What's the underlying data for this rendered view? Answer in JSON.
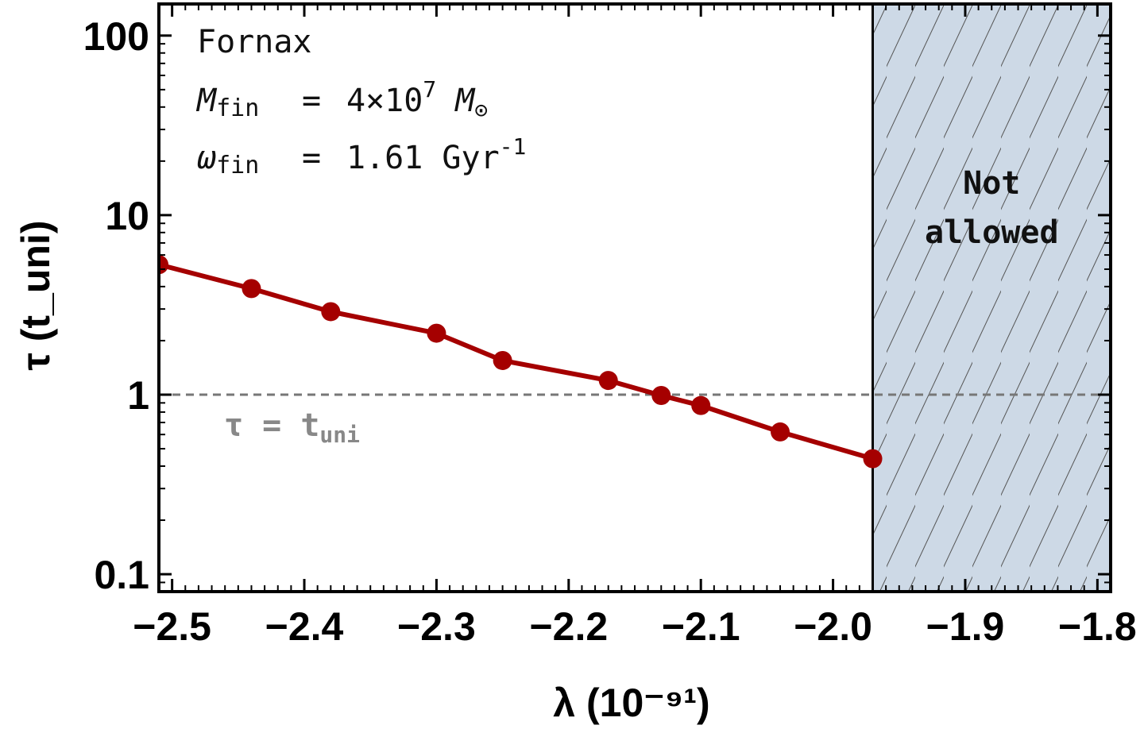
{
  "chart_data": {
    "type": "line",
    "xlabel": "λ (10⁻⁹¹)",
    "ylabel": "τ (t_uni)",
    "xlim": [
      -2.51,
      -1.79
    ],
    "ylim": [
      0.08,
      150
    ],
    "y_scale": "log",
    "x_ticks": [
      -2.5,
      -2.4,
      -2.3,
      -2.2,
      -2.1,
      -2.0,
      -1.9,
      -1.8
    ],
    "x_tick_labels": [
      "−2.5",
      "−2.4",
      "−2.3",
      "−2.2",
      "−2.1",
      "−2.0",
      "−1.9",
      "−1.8"
    ],
    "y_ticks": [
      0.1,
      1,
      10,
      100
    ],
    "y_tick_labels": [
      "0.1",
      "1",
      "10",
      "100"
    ],
    "grid": false,
    "series": [
      {
        "color": "#a50000",
        "x": [
          -2.51,
          -2.44,
          -2.38,
          -2.3,
          -2.25,
          -2.17,
          -2.13,
          -2.1,
          -2.04,
          -1.97
        ],
        "y": [
          5.3,
          3.9,
          2.9,
          2.2,
          1.55,
          1.2,
          0.99,
          0.87,
          0.62,
          0.44
        ]
      }
    ],
    "reference_line": {
      "y": 1,
      "style": "dashed",
      "color": "#777777",
      "label": "τ = t",
      "label_sub": "uni"
    },
    "forbidden_region": {
      "x_from": -1.97,
      "x_to": -1.79,
      "fill": "#cdd9e6",
      "hatch": true,
      "label_lines": [
        "Not",
        "allowed"
      ]
    },
    "annotations": {
      "name": "Fornax",
      "mass": {
        "sym": "M",
        "sub": "fin",
        "eq": "=",
        "value": "4×10",
        "exp": "7",
        "unit": "M",
        "unit_sub": "⊙"
      },
      "omega": {
        "sym": "ω",
        "sub": "fin",
        "eq": "=",
        "value": "1.61 Gyr",
        "exp": "-1"
      }
    }
  }
}
